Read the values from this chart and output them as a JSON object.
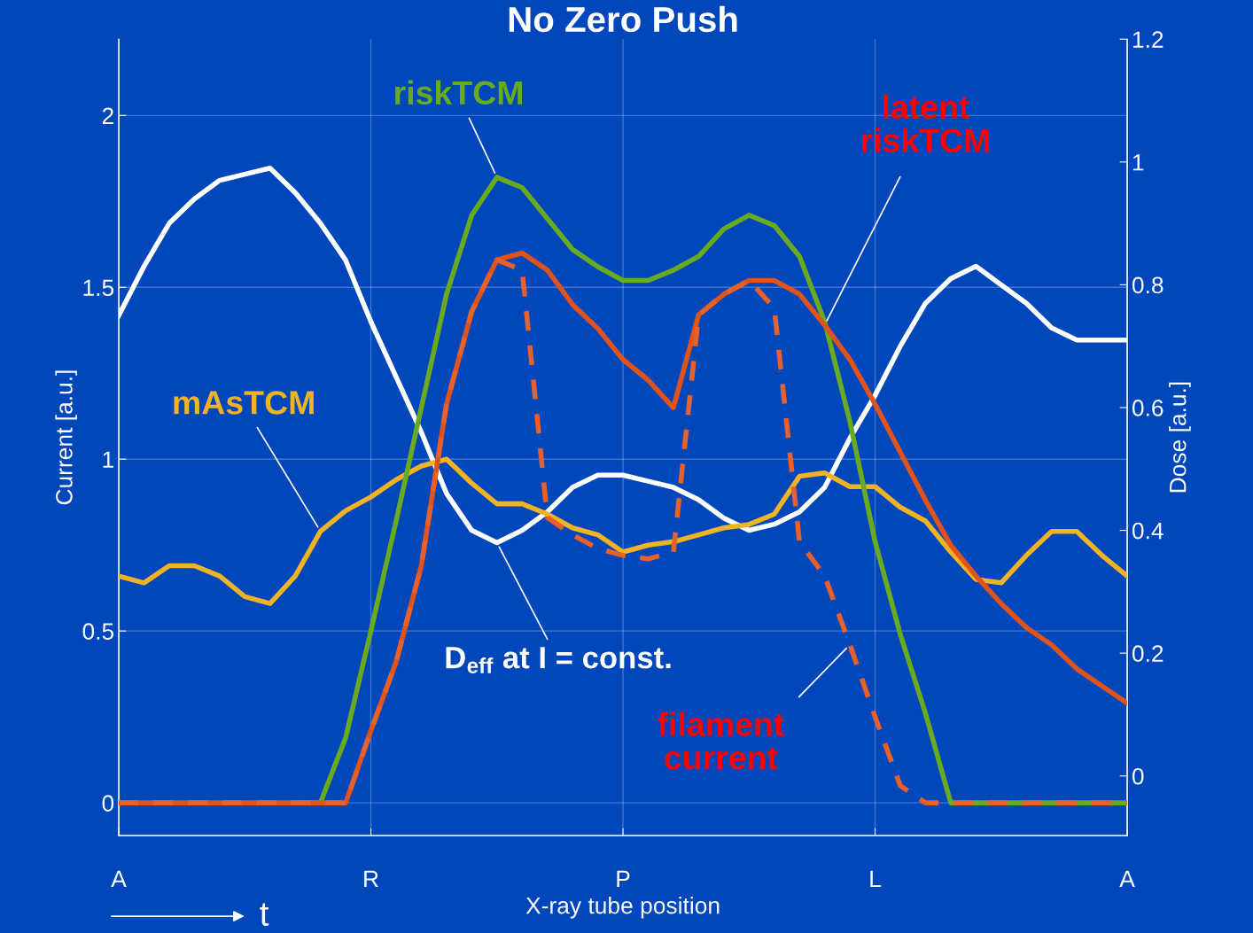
{
  "chart_data": {
    "type": "line",
    "title": "No Zero Push",
    "xlabel": "X-ray tube position",
    "ylabel": "Current [a.u.]",
    "y2label": "Dose [a.u.]",
    "annotations": [
      "t"
    ],
    "categories": [
      "A",
      null,
      null,
      null,
      null,
      null,
      null,
      null,
      null,
      null,
      "R",
      null,
      null,
      null,
      null,
      null,
      null,
      null,
      null,
      null,
      "P",
      null,
      null,
      null,
      null,
      null,
      null,
      null,
      null,
      null,
      "L",
      null,
      null,
      null,
      null,
      null,
      null,
      null,
      null,
      null,
      "A"
    ],
    "ylim": [
      -0.095,
      2.222
    ],
    "yticks": [
      0,
      0.5,
      1,
      1.5,
      2
    ],
    "y2lim": [
      -0.097,
      1.2
    ],
    "y2ticks": [
      0,
      0.2,
      0.4,
      0.6,
      0.8,
      1,
      1.2
    ],
    "grid": true,
    "legend": false,
    "marker": "none",
    "series": [
      {
        "name": "mAsTCM",
        "color": "#f0b323",
        "line_style": "solid",
        "values": [
          0.66,
          0.64,
          0.69,
          0.69,
          0.66,
          0.6,
          0.58,
          0.66,
          0.79,
          0.85,
          0.89,
          0.94,
          0.98,
          1.0,
          0.93,
          0.87,
          0.87,
          0.84,
          0.8,
          0.78,
          0.73,
          0.75,
          0.76,
          0.78,
          0.8,
          0.81,
          0.84,
          0.95,
          0.96,
          0.92,
          0.92,
          0.86,
          0.82,
          0.73,
          0.65,
          0.64,
          0.72,
          0.79,
          0.79,
          0.72,
          0.66
        ]
      },
      {
        "name": "riskTCM",
        "color": "#6aaa1e",
        "line_style": "solid",
        "values": [
          null,
          null,
          null,
          null,
          null,
          null,
          null,
          0,
          0,
          0.19,
          0.5,
          0.82,
          1.15,
          1.48,
          1.71,
          1.82,
          1.79,
          1.7,
          1.61,
          1.56,
          1.52,
          1.52,
          1.55,
          1.59,
          1.67,
          1.71,
          1.68,
          1.59,
          1.4,
          1.11,
          0.76,
          0.49,
          0.26,
          0,
          0,
          0,
          0,
          0,
          0,
          0,
          0
        ]
      },
      {
        "name": "latent riskTCM",
        "color": "#e0541a",
        "line_style": "solid",
        "values": [
          0,
          0,
          0,
          0,
          0,
          0,
          0,
          0,
          0,
          0,
          0.21,
          0.41,
          0.69,
          1.16,
          1.43,
          1.58,
          1.6,
          1.55,
          1.45,
          1.38,
          1.29,
          1.23,
          1.15,
          1.42,
          1.48,
          1.52,
          1.52,
          1.48,
          1.39,
          1.29,
          1.16,
          1.02,
          0.88,
          0.75,
          0.66,
          0.58,
          0.51,
          0.46,
          0.39,
          0.34,
          0.29
        ]
      },
      {
        "name": "filament current",
        "color": "#e8602a",
        "line_style": "dashed",
        "values": [
          0,
          0,
          0,
          0,
          0,
          0,
          0,
          0,
          0,
          0,
          0.21,
          0.41,
          0.69,
          1.16,
          1.43,
          1.58,
          1.55,
          0.83,
          0.78,
          0.74,
          0.72,
          0.71,
          0.73,
          1.42,
          1.48,
          1.52,
          1.44,
          0.76,
          0.66,
          0.46,
          0.25,
          0.05,
          0,
          0,
          0,
          0,
          0,
          0,
          0,
          0,
          0
        ]
      },
      {
        "name": "D$_{eff}$ at I = const.",
        "color": "#ffffff",
        "line_style": "solid",
        "axis": "y2",
        "values": [
          0.75,
          0.83,
          0.9,
          0.94,
          0.97,
          0.98,
          0.99,
          0.95,
          0.9,
          0.84,
          0.74,
          0.65,
          0.56,
          0.46,
          0.4,
          0.38,
          0.4,
          0.43,
          0.47,
          0.49,
          0.49,
          0.48,
          0.47,
          0.45,
          0.42,
          0.4,
          0.41,
          0.43,
          0.47,
          0.55,
          0.62,
          0.7,
          0.77,
          0.81,
          0.83,
          0.8,
          0.77,
          0.73,
          0.71,
          0.71,
          0.71
        ]
      }
    ]
  }
}
